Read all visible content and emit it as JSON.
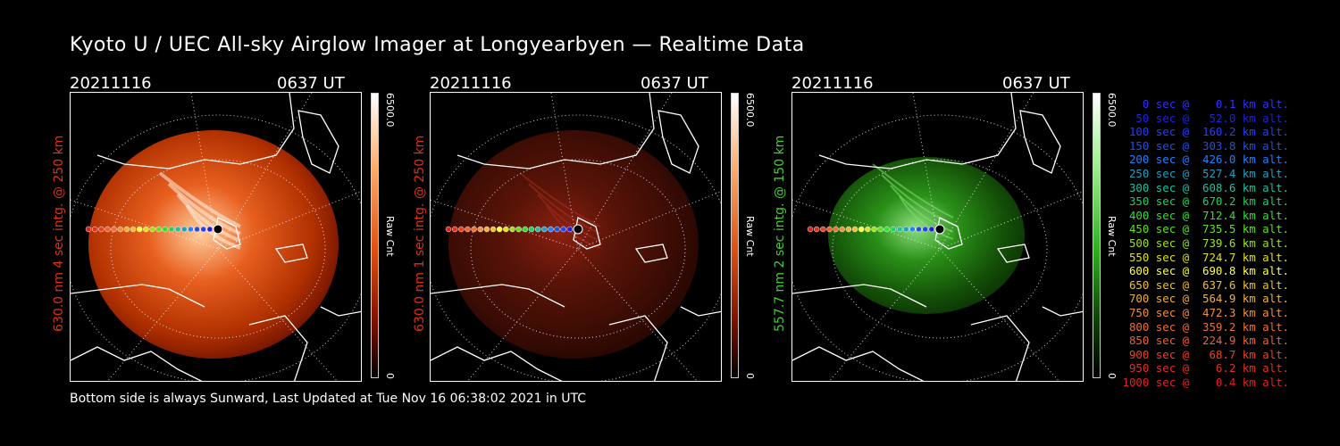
{
  "title": "Kyoto U / UEC All-sky Airglow Imager at Longyearbyen — Realtime Data",
  "footer": "Bottom side is always Sunward, Last Updated at Tue Nov 16 06:38:02 2021 in UTC",
  "colorbar_max": "6500.0",
  "colorbar_min": "0",
  "colorbar_unit": "Raw Cnt",
  "panels": [
    {
      "date": "20211116",
      "time": "0637 UT",
      "label": "630.0 nm 4 sec intg. @ 250 km",
      "label_color": "#e03010",
      "theme": "red-bright"
    },
    {
      "date": "20211116",
      "time": "0637 UT",
      "label": "630.0 nm 1 sec intg. @ 250 km",
      "label_color": "#e03010",
      "theme": "red-dim"
    },
    {
      "date": "20211116",
      "time": "0637 UT",
      "label": "557.7 nm 2 sec intg. @ 150 km",
      "label_color": "#40d030",
      "theme": "green"
    }
  ],
  "legend": [
    {
      "text": "0 sec @    0.1 km alt.",
      "color": "#3030ff"
    },
    {
      "text": "50 sec @   52.0 km alt.",
      "color": "#2020e0"
    },
    {
      "text": "100 sec @  160.2 km alt.",
      "color": "#2040ff"
    },
    {
      "text": "150 sec @  303.8 km alt.",
      "color": "#2050e0"
    },
    {
      "text": "200 sec @  426.0 km alt.",
      "color": "#2080ff"
    },
    {
      "text": "250 sec @  527.4 km alt.",
      "color": "#20a0c0"
    },
    {
      "text": "300 sec @  608.6 km alt.",
      "color": "#20c0a0"
    },
    {
      "text": "350 sec @  670.2 km alt.",
      "color": "#20d060"
    },
    {
      "text": "400 sec @  712.4 km alt.",
      "color": "#30e030"
    },
    {
      "text": "450 sec @  735.5 km alt.",
      "color": "#60e020"
    },
    {
      "text": "500 sec @  739.6 km alt.",
      "color": "#a0e020"
    },
    {
      "text": "550 sec @  724.7 km alt.",
      "color": "#e0e020"
    },
    {
      "text": "600 sec @  690.8 km alt.",
      "color": "#ffff40"
    },
    {
      "text": "650 sec @  637.6 km alt.",
      "color": "#f0c030"
    },
    {
      "text": "700 sec @  564.9 km alt.",
      "color": "#f0b040"
    },
    {
      "text": "750 sec @  472.3 km alt.",
      "color": "#f09040"
    },
    {
      "text": "800 sec @  359.2 km alt.",
      "color": "#f07030"
    },
    {
      "text": "850 sec @  224.9 km alt.",
      "color": "#f06030"
    },
    {
      "text": "900 sec @   68.7 km alt.",
      "color": "#f04020"
    },
    {
      "text": "950 sec @    6.2 km alt.",
      "color": "#e03020"
    },
    {
      "text": "1000 sec @    0.4 km alt.",
      "color": "#e02020"
    }
  ]
}
